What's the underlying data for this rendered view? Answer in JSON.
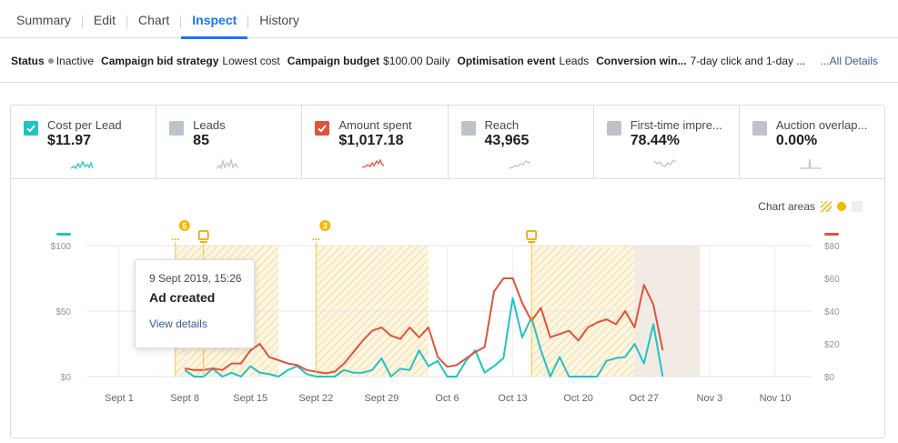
{
  "tabs": [
    {
      "label": "Summary",
      "active": false
    },
    {
      "label": "Edit",
      "active": false
    },
    {
      "label": "Chart",
      "active": false
    },
    {
      "label": "Inspect",
      "active": true
    },
    {
      "label": "History",
      "active": false
    }
  ],
  "status_bar": {
    "status_label": "Status",
    "status_value": "Inactive",
    "bid_label": "Campaign bid strategy",
    "bid_value": "Lowest cost",
    "budget_label": "Campaign budget",
    "budget_value": "$100.00 Daily",
    "optim_label": "Optimisation event",
    "optim_value": "Leads",
    "conv_label": "Conversion win...",
    "conv_value": "7-day click and 1-day ...",
    "all_details": "...All Details"
  },
  "metrics": [
    {
      "name": "Cost per Lead",
      "value": "$11.97",
      "checked": true,
      "color": "#20c4c2"
    },
    {
      "name": "Leads",
      "value": "85",
      "checked": false,
      "color": "#bec3c9"
    },
    {
      "name": "Amount spent",
      "value": "$1,017.18",
      "checked": true,
      "color": "#e0533a"
    },
    {
      "name": "Reach",
      "value": "43,965",
      "checked": false,
      "color": "#bec3c9"
    },
    {
      "name": "First-time impre...",
      "value": "78.44%",
      "checked": false,
      "color": "#bec3c9"
    },
    {
      "name": "Auction overlap...",
      "value": "0.00%",
      "checked": false,
      "color": "#bec3c9"
    }
  ],
  "chart_areas_label": "Chart areas",
  "tooltip": {
    "date": "9 Sept 2019, 15:26",
    "title": "Ad created",
    "link": "View details"
  },
  "chart_data": {
    "type": "line",
    "x_tick_labels": [
      "Sept 1",
      "Sept 8",
      "Sept 15",
      "Sept 22",
      "Sept 29",
      "Oct 6",
      "Oct 13",
      "Oct 20",
      "Oct 27",
      "Nov 3",
      "Nov 10"
    ],
    "left_axis": {
      "ticks": [
        "$0",
        "$50",
        "$100"
      ],
      "ylim": [
        0,
        100
      ]
    },
    "right_axis": {
      "ticks": [
        "$0",
        "$20",
        "$40",
        "$60",
        "$80"
      ],
      "ylim": [
        0,
        80
      ]
    },
    "series": [
      {
        "name": "Cost per Lead",
        "axis": "left",
        "color": "#20c4c2",
        "start_day": 7,
        "values": [
          5,
          0,
          0,
          6,
          0,
          3,
          0,
          8,
          3,
          2,
          0,
          5,
          8,
          2,
          0,
          0,
          0,
          5,
          3,
          3,
          5,
          14,
          0,
          6,
          5,
          20,
          8,
          12,
          0,
          0,
          12,
          20,
          3,
          8,
          14,
          60,
          30,
          45,
          20,
          0,
          15,
          0,
          0,
          0,
          0,
          12,
          14,
          15,
          25,
          10,
          40,
          0
        ]
      },
      {
        "name": "Amount spent",
        "axis": "right",
        "color": "#e0533a",
        "start_day": 7,
        "values": [
          5,
          4,
          4,
          5,
          4,
          8,
          8,
          16,
          20,
          12,
          10,
          8,
          7,
          4,
          3,
          2,
          3,
          8,
          15,
          22,
          28,
          30,
          25,
          23,
          30,
          24,
          30,
          12,
          6,
          7,
          11,
          15,
          18,
          52,
          60,
          60,
          45,
          34,
          42,
          24,
          26,
          28,
          22,
          30,
          33,
          35,
          32,
          40,
          30,
          56,
          44,
          16
        ]
      }
    ],
    "event_markers": [
      {
        "day": 6,
        "count": "5",
        "kind": "ellipsis"
      },
      {
        "day": 9,
        "kind": "ad"
      },
      {
        "day": 21,
        "count": "3",
        "kind": "ellipsis"
      },
      {
        "day": 44,
        "kind": "ad"
      }
    ],
    "hatched_ranges": [
      [
        6,
        17
      ],
      [
        21,
        33
      ],
      [
        44,
        55
      ]
    ],
    "shaded_range": [
      54,
      62
    ],
    "grid": true
  }
}
